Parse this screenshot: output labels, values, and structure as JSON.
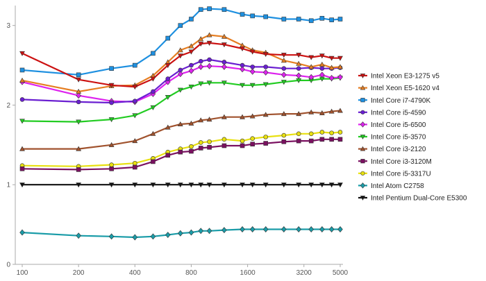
{
  "chart_data": {
    "type": "line",
    "title": "",
    "xlabel": "",
    "ylabel": "",
    "x_scale": "log",
    "xlim": [
      100,
      5000
    ],
    "ylim": [
      0,
      3.25
    ],
    "x_ticks": [
      100,
      200,
      400,
      800,
      1600,
      3200,
      5000
    ],
    "x_tick_labels": [
      "100",
      "200",
      "400",
      "800",
      "1600",
      "3200",
      "5000"
    ],
    "y_ticks": [
      0,
      1,
      2,
      3
    ],
    "y_tick_labels": [
      "0",
      "1",
      "2",
      "3"
    ],
    "legend_position": "right",
    "grid": false,
    "x": [
      100,
      200,
      300,
      400,
      500,
      600,
      700,
      800,
      900,
      1000,
      1200,
      1500,
      1700,
      2000,
      2500,
      3000,
      3500,
      4000,
      4500,
      5000
    ],
    "series": [
      {
        "name": "Intel Xeon E3-1275 v5",
        "color": "#cc1111",
        "marker": "triangle-down",
        "values": [
          2.65,
          2.32,
          2.25,
          2.23,
          2.33,
          2.5,
          2.62,
          2.67,
          2.77,
          2.78,
          2.76,
          2.71,
          2.67,
          2.64,
          2.63,
          2.63,
          2.6,
          2.62,
          2.59,
          2.59
        ]
      },
      {
        "name": "Intel Xeon E5-1620 v4",
        "color": "#e67e22",
        "marker": "triangle-up",
        "values": [
          2.31,
          2.17,
          2.24,
          2.25,
          2.37,
          2.54,
          2.69,
          2.74,
          2.83,
          2.88,
          2.86,
          2.75,
          2.69,
          2.66,
          2.56,
          2.52,
          2.48,
          2.51,
          2.47,
          2.48
        ]
      },
      {
        "name": "Intel Core i7-4790K",
        "color": "#1e90e0",
        "marker": "square",
        "values": [
          2.44,
          2.38,
          2.46,
          2.5,
          2.65,
          2.84,
          3.0,
          3.08,
          3.2,
          3.21,
          3.2,
          3.14,
          3.12,
          3.11,
          3.08,
          3.08,
          3.06,
          3.09,
          3.07,
          3.08
        ]
      },
      {
        "name": "Intel Core i5-4590",
        "color": "#6a1fd1",
        "marker": "circle",
        "values": [
          2.07,
          2.04,
          2.03,
          2.05,
          2.17,
          2.33,
          2.44,
          2.5,
          2.55,
          2.57,
          2.54,
          2.5,
          2.48,
          2.48,
          2.46,
          2.46,
          2.47,
          2.46,
          2.46,
          2.47
        ]
      },
      {
        "name": "Intel Core i5-6500",
        "color": "#dd22ee",
        "marker": "diamond",
        "values": [
          2.29,
          2.12,
          2.05,
          2.04,
          2.14,
          2.29,
          2.39,
          2.43,
          2.48,
          2.49,
          2.48,
          2.45,
          2.42,
          2.41,
          2.38,
          2.37,
          2.35,
          2.38,
          2.34,
          2.35
        ]
      },
      {
        "name": "Intel Core i5-3570",
        "color": "#22cc22",
        "marker": "triangle-down",
        "values": [
          1.8,
          1.79,
          1.82,
          1.87,
          1.97,
          2.1,
          2.19,
          2.23,
          2.27,
          2.28,
          2.28,
          2.25,
          2.25,
          2.26,
          2.29,
          2.31,
          2.31,
          2.33,
          2.33,
          2.34
        ]
      },
      {
        "name": "Intel Core i3-2120",
        "color": "#a0522d",
        "marker": "triangle-up",
        "values": [
          1.45,
          1.45,
          1.5,
          1.55,
          1.64,
          1.72,
          1.76,
          1.77,
          1.81,
          1.82,
          1.85,
          1.85,
          1.86,
          1.88,
          1.89,
          1.89,
          1.91,
          1.9,
          1.92,
          1.93
        ]
      },
      {
        "name": "Intel Core i3-3120M",
        "color": "#7a1060",
        "marker": "square",
        "values": [
          1.2,
          1.19,
          1.2,
          1.22,
          1.29,
          1.37,
          1.41,
          1.42,
          1.46,
          1.47,
          1.49,
          1.49,
          1.51,
          1.52,
          1.54,
          1.55,
          1.55,
          1.57,
          1.57,
          1.57
        ]
      },
      {
        "name": "Intel Core i5-3317U",
        "color": "#e8e010",
        "marker": "circle",
        "values": [
          1.24,
          1.23,
          1.25,
          1.27,
          1.33,
          1.41,
          1.45,
          1.48,
          1.53,
          1.54,
          1.57,
          1.55,
          1.58,
          1.6,
          1.62,
          1.64,
          1.64,
          1.66,
          1.65,
          1.66
        ]
      },
      {
        "name": "Intel Atom C2758",
        "color": "#1a9ca8",
        "marker": "diamond",
        "values": [
          0.4,
          0.36,
          0.35,
          0.34,
          0.35,
          0.37,
          0.39,
          0.4,
          0.42,
          0.42,
          0.43,
          0.44,
          0.44,
          0.44,
          0.44,
          0.44,
          0.44,
          0.44,
          0.44,
          0.44
        ]
      },
      {
        "name": "Intel Pentium Dual-Core E5300",
        "color": "#111111",
        "marker": "triangle-down",
        "values": [
          1.0,
          1.0,
          1.0,
          1.0,
          1.0,
          1.0,
          1.0,
          1.0,
          1.0,
          1.0,
          1.0,
          1.0,
          1.0,
          1.0,
          1.0,
          1.0,
          1.0,
          1.0,
          1.0,
          1.0
        ]
      }
    ]
  }
}
